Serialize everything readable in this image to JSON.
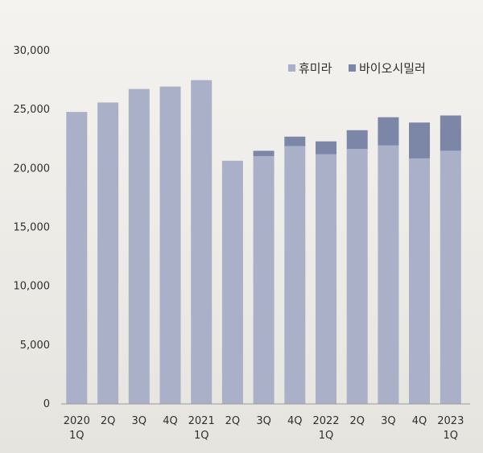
{
  "chart_data": {
    "type": "bar",
    "stacked": true,
    "categories": [
      [
        "2020",
        "1Q"
      ],
      [
        "2Q"
      ],
      [
        "3Q"
      ],
      [
        "4Q"
      ],
      [
        "2021",
        "1Q"
      ],
      [
        "2Q"
      ],
      [
        "3Q"
      ],
      [
        "4Q"
      ],
      [
        "2022",
        "1Q"
      ],
      [
        "2Q"
      ],
      [
        "3Q"
      ],
      [
        "4Q"
      ],
      [
        "2023",
        "1Q"
      ]
    ],
    "series": [
      {
        "name": "휴미라",
        "color": "#a9b0c8",
        "values": [
          24800,
          25600,
          26750,
          26950,
          27500,
          20650,
          21050,
          21900,
          21200,
          21650,
          21950,
          20850,
          21500
        ]
      },
      {
        "name": "바이오시밀러",
        "color": "#7c87a8",
        "values": [
          0,
          0,
          0,
          0,
          0,
          0,
          450,
          800,
          1100,
          1600,
          2400,
          3050,
          3000
        ]
      }
    ],
    "yticks": [
      "0",
      "5,000",
      "10,000",
      "15,000",
      "20,000",
      "25,000",
      "30,000"
    ],
    "ylim": [
      0,
      30000
    ],
    "grid": false,
    "legend_position": "top-right"
  }
}
